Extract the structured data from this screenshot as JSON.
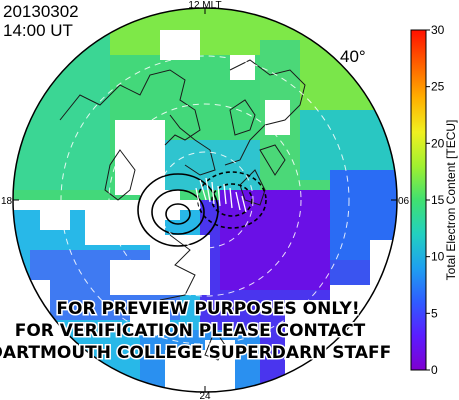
{
  "header": {
    "date": "20130302",
    "time": "14:00 UT"
  },
  "latitude_label": "40°",
  "mlt_labels": {
    "top": "12 MLT",
    "left": "18",
    "right": "06",
    "bottom": "24"
  },
  "colorbar": {
    "title": "Total Electron Content [TECU]",
    "min": 0,
    "max": 30,
    "ticks": [
      "0",
      "5",
      "10",
      "15",
      "20",
      "25",
      "30"
    ],
    "colors": [
      "#7f00d0",
      "#5b1cff",
      "#2f5cff",
      "#1ea0f0",
      "#22d0c0",
      "#40e070",
      "#a0f030",
      "#f0f020",
      "#ffb000",
      "#ff6000",
      "#ff1000"
    ]
  },
  "watermark": {
    "line1": "FOR PREVIEW PURPOSES ONLY!",
    "line2": "FOR VERIFICATION PLEASE CONTACT",
    "line3": "DARTMOUTH COLLEGE SUPERDARN STAFF"
  }
}
